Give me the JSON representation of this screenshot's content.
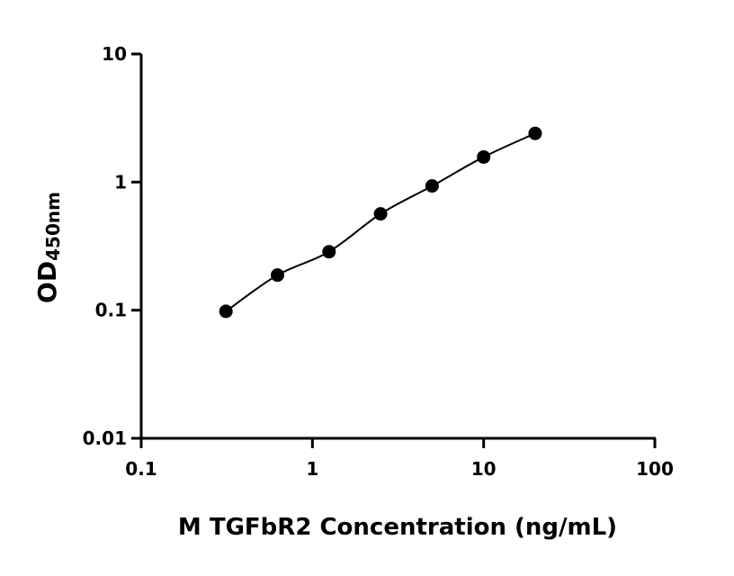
{
  "chart_data": {
    "type": "scatter",
    "title": "",
    "xlabel": "M TGFbR2 Concentration (ng/mL)",
    "ylabel": "OD",
    "ylabel_subscript": "450nm",
    "x_scale": "log",
    "y_scale": "log",
    "xlim": [
      0.1,
      100
    ],
    "ylim": [
      0.01,
      10
    ],
    "x_ticks": [
      "0.1",
      "1",
      "10",
      "100"
    ],
    "y_ticks": [
      "0.01",
      "0.1",
      "1",
      "10"
    ],
    "grid": false,
    "legend": "none",
    "fit_curve": true,
    "color": "#000000",
    "series": [
      {
        "x": [
          0.3125,
          0.625,
          1.25,
          2.5,
          5,
          10,
          20
        ],
        "y": [
          0.098,
          0.188,
          0.286,
          0.565,
          0.933,
          1.57,
          2.4
        ]
      }
    ]
  }
}
